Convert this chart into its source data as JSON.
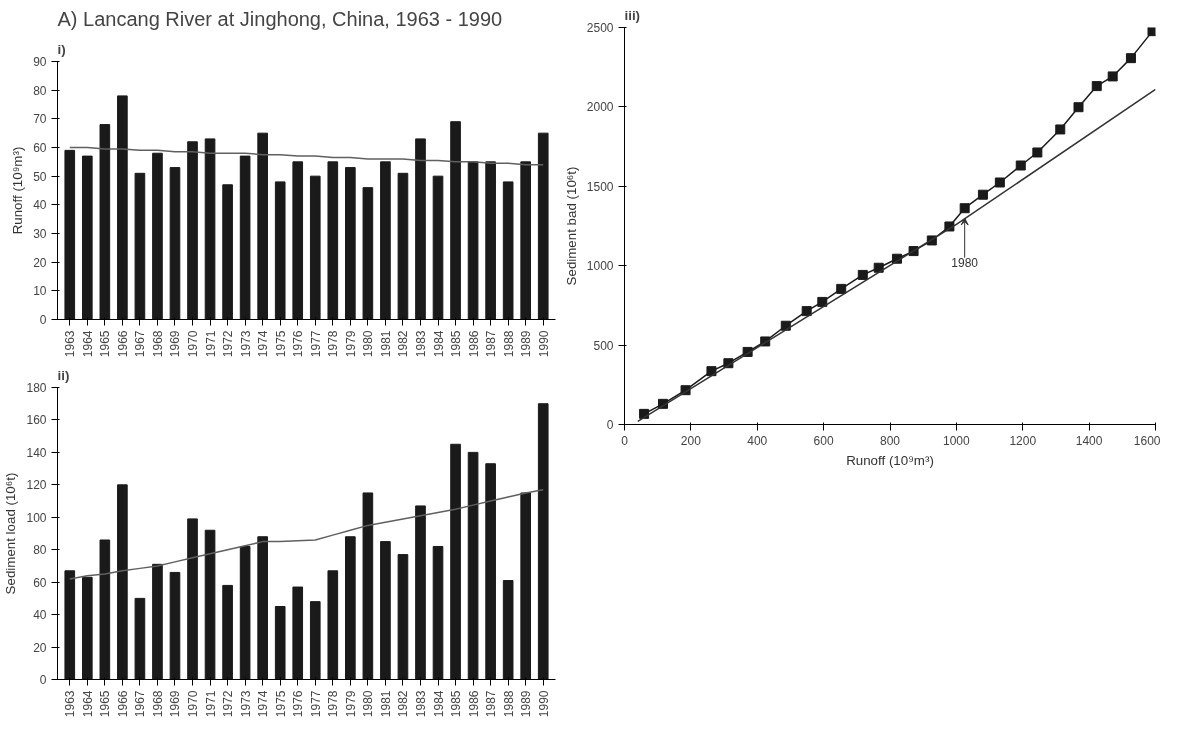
{
  "chart_data": [
    {
      "type": "bar",
      "title": "A) Lancang River at Jinghong, China, 1963 - 1990",
      "subtitle": "i)",
      "ylabel": "Runoff (10⁹m³)",
      "categories": [
        "1963",
        "1964",
        "1965",
        "1966",
        "1967",
        "1968",
        "1969",
        "1970",
        "1971",
        "1972",
        "1973",
        "1974",
        "1975",
        "1976",
        "1977",
        "1978",
        "1979",
        "1980",
        "1981",
        "1982",
        "1983",
        "1984",
        "1985",
        "1986",
        "1987",
        "1988",
        "1989",
        "1990"
      ],
      "series": [
        {
          "type": "bar",
          "color": "#1a1a1a",
          "values": [
            59,
            57,
            68,
            78,
            51,
            58,
            53,
            62,
            63,
            47,
            57,
            65,
            48,
            55,
            50,
            55,
            53,
            46,
            55,
            51,
            63,
            50,
            69,
            55,
            55,
            48,
            55,
            65
          ]
        },
        {
          "type": "line",
          "color": "#606060",
          "values": [
            60,
            60,
            59.5,
            59.5,
            59,
            59,
            58.5,
            58.5,
            58,
            58,
            58,
            57.5,
            57.5,
            57,
            57,
            56.5,
            56.5,
            56,
            56,
            56,
            55.5,
            55.5,
            55,
            55,
            54.5,
            54.5,
            54,
            54
          ]
        }
      ],
      "ylim": [
        0,
        90
      ],
      "yticks": [
        0,
        10,
        20,
        30,
        40,
        50,
        60,
        70,
        80,
        90
      ],
      "grid": false,
      "marker": "none",
      "line_style": "solid"
    },
    {
      "type": "bar",
      "title": "ii)",
      "ylabel": "Sediment load (10⁶t)",
      "categories": [
        "1963",
        "1964",
        "1965",
        "1966",
        "1967",
        "1968",
        "1969",
        "1970",
        "1971",
        "1972",
        "1973",
        "1974",
        "1975",
        "1976",
        "1977",
        "1978",
        "1979",
        "1980",
        "1981",
        "1982",
        "1983",
        "1984",
        "1985",
        "1986",
        "1987",
        "1988",
        "1989",
        "1990"
      ],
      "series": [
        {
          "type": "bar",
          "color": "#1a1a1a",
          "values": [
            67,
            63,
            86,
            120,
            50,
            71,
            66,
            99,
            92,
            58,
            82,
            88,
            45,
            57,
            48,
            67,
            88,
            115,
            85,
            77,
            107,
            82,
            145,
            140,
            133,
            61,
            115,
            170
          ]
        },
        {
          "type": "line",
          "color": "#606060",
          "values": [
            62,
            64,
            65,
            67,
            68.5,
            70,
            72.5,
            75,
            77.5,
            80,
            82.5,
            85,
            85,
            85.5,
            86,
            89,
            92,
            95,
            97,
            99,
            101,
            103,
            105,
            107.5,
            110,
            112.5,
            115,
            117
          ]
        }
      ],
      "ylim": [
        0,
        180
      ],
      "yticks": [
        0,
        20,
        40,
        60,
        80,
        100,
        120,
        140,
        160,
        180
      ],
      "grid": false,
      "marker": "none",
      "line_style": "solid"
    },
    {
      "type": "line",
      "title": "iii)",
      "xlabel": "Runoff (10⁹m³)",
      "ylabel": "Sediment bad (10⁶t)",
      "series": [
        {
          "type": "line",
          "color": "#1a1a1a",
          "marker": "square",
          "x": [
            59,
            116,
            184,
            262,
            313,
            371,
            424,
            486,
            549,
            596,
            653,
            718,
            766,
            821,
            871,
            926,
            979,
            1025,
            1080,
            1131,
            1194,
            1244,
            1313,
            1368,
            1423,
            1471,
            1526,
            1591
          ],
          "values": [
            67,
            130,
            216,
            336,
            386,
            457,
            523,
            622,
            714,
            772,
            854,
            942,
            987,
            1044,
            1092,
            1159,
            1247,
            1362,
            1447,
            1524,
            1631,
            1713,
            1858,
            1998,
            2131,
            2192,
            2307,
            2477
          ]
        },
        {
          "type": "line",
          "color": "#333333",
          "marker": "none",
          "x": [
            40,
            1000,
            1600
          ],
          "values": [
            20,
            1260,
            2110
          ]
        }
      ],
      "xlim": [
        0,
        1600
      ],
      "xticks": [
        0,
        200,
        400,
        600,
        800,
        1000,
        1200,
        1400,
        1600
      ],
      "ylim": [
        0,
        2500
      ],
      "yticks": [
        0,
        500,
        1000,
        1500,
        2000,
        2500
      ],
      "grid": false,
      "line_style": "solid",
      "annotations": [
        {
          "text": "1980",
          "x": 1025,
          "y": 1300
        }
      ]
    }
  ]
}
